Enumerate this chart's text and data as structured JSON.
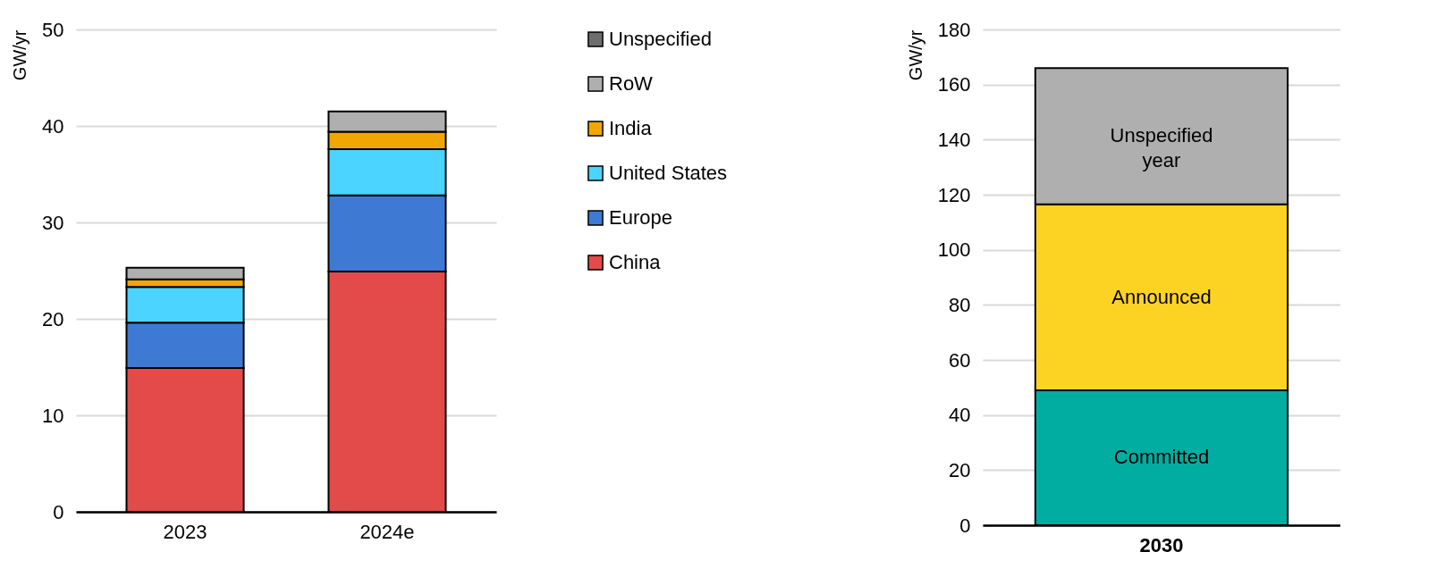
{
  "chart_data": [
    {
      "type": "bar",
      "stacked": true,
      "ylabel": "GW/yr",
      "categories": [
        "2023",
        "2024e"
      ],
      "ylim": [
        0,
        50
      ],
      "yticks": [
        0,
        10,
        20,
        30,
        40,
        50
      ],
      "grid": "y",
      "legend": "right",
      "series": [
        {
          "name": "China",
          "color": "#e24b4a",
          "values": [
            14.9,
            24.9
          ]
        },
        {
          "name": "Europe",
          "color": "#3e7ad3",
          "values": [
            4.7,
            7.9
          ]
        },
        {
          "name": "United States",
          "color": "#4ad4ff",
          "values": [
            3.7,
            4.8
          ]
        },
        {
          "name": "India",
          "color": "#f0a800",
          "values": [
            0.8,
            1.8
          ]
        },
        {
          "name": "RoW",
          "color": "#afafaf",
          "values": [
            1.2,
            2.1
          ]
        },
        {
          "name": "Unspecified",
          "color": "#6e6e6e",
          "values": [
            null,
            null
          ]
        }
      ]
    },
    {
      "type": "bar",
      "stacked": true,
      "ylabel": "GW/yr",
      "categories": [
        "2030"
      ],
      "ylim": [
        0,
        180
      ],
      "yticks": [
        0,
        20,
        40,
        60,
        80,
        100,
        120,
        140,
        160,
        180
      ],
      "grid": "y",
      "legend": false,
      "series": [
        {
          "name": "Committed",
          "color": "#00ada0",
          "values": [
            49
          ]
        },
        {
          "name": "Announced",
          "color": "#fdd323",
          "values": [
            67.5
          ]
        },
        {
          "name": "Unspecified year",
          "color": "#afafaf",
          "values": [
            49.5
          ]
        }
      ]
    }
  ]
}
